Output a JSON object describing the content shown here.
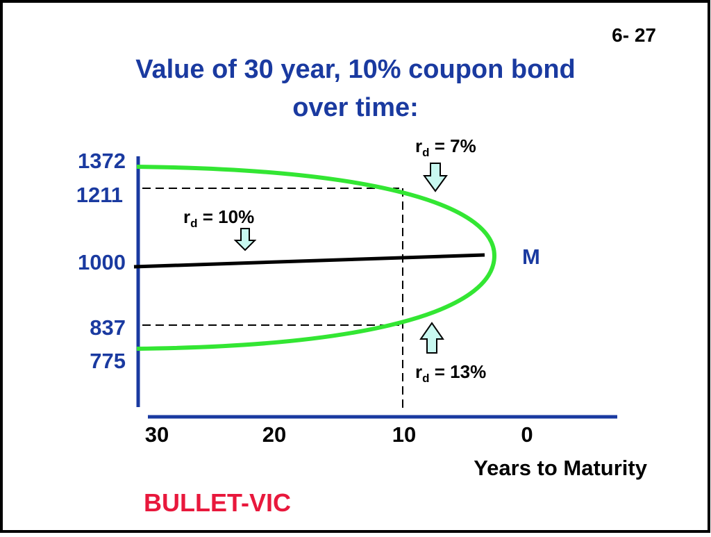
{
  "slide_number": "6- 27",
  "title": [
    "Value of  30 year, 10% coupon bond",
    "over time:"
  ],
  "y_labels": [
    "1372",
    "1211",
    "1000",
    "837",
    "775"
  ],
  "x_labels": [
    "30",
    "20",
    "10",
    "0"
  ],
  "x_axis_label": "Years to Maturity",
  "rate_labels": [
    {
      "symbol": "r",
      "subscript": "d",
      "text": " = 7%"
    },
    {
      "symbol": "r",
      "subscript": "d",
      "text": " = 10%"
    },
    {
      "symbol": "r",
      "subscript": "d",
      "text": " = 13%"
    }
  ],
  "maturity_label": "M",
  "footer": "BULLET-VIC"
}
